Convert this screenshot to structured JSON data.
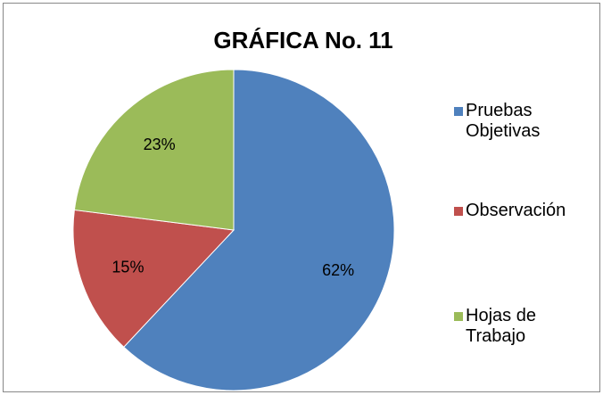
{
  "chart_data": {
    "type": "pie",
    "title": "GRÁFICA No. 11",
    "categories": [
      "Pruebas Objetivas",
      "Observación",
      "Hojas de Trabajo"
    ],
    "values": [
      62,
      15,
      23
    ],
    "value_labels": [
      "62%",
      "15%",
      "23%"
    ],
    "colors": [
      "#4f81bd",
      "#c0504d",
      "#9bbb59"
    ],
    "legend": "right"
  }
}
